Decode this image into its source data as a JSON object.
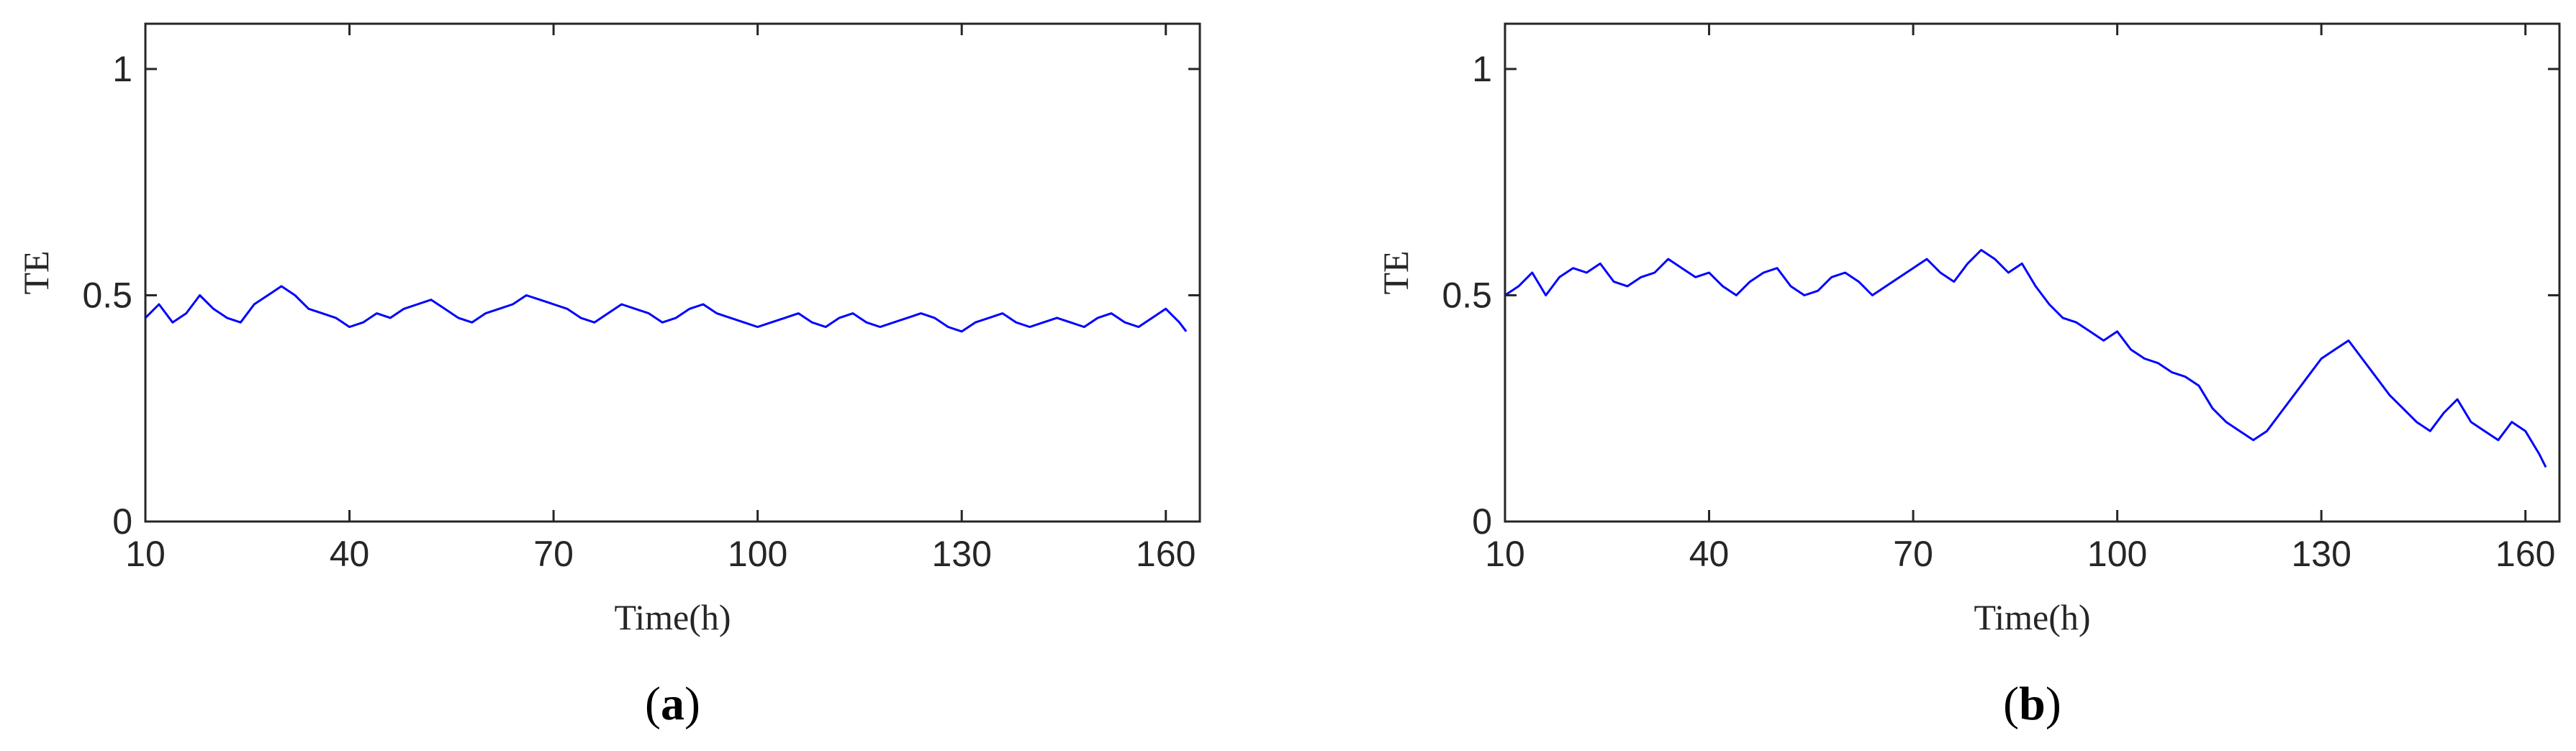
{
  "chart_data": [
    {
      "panel": "(a)",
      "panel_letter": "a",
      "type": "line",
      "xlabel": "Time(h)",
      "ylabel": "TE",
      "xlim": [
        10,
        165
      ],
      "ylim": [
        0,
        1.1
      ],
      "xticks": [
        10,
        40,
        70,
        100,
        130,
        160
      ],
      "yticks": [
        0,
        0.5,
        1
      ],
      "grid": false,
      "series": [
        {
          "color": "#0000ff",
          "x": [
            10,
            12,
            14,
            16,
            18,
            20,
            22,
            24,
            26,
            28,
            30,
            32,
            34,
            36,
            38,
            40,
            42,
            44,
            46,
            48,
            50,
            52,
            54,
            56,
            58,
            60,
            62,
            64,
            66,
            68,
            70,
            72,
            74,
            76,
            78,
            80,
            82,
            84,
            86,
            88,
            90,
            92,
            94,
            96,
            98,
            100,
            102,
            104,
            106,
            108,
            110,
            112,
            114,
            116,
            118,
            120,
            122,
            124,
            126,
            128,
            130,
            132,
            134,
            136,
            138,
            140,
            142,
            144,
            146,
            148,
            150,
            152,
            154,
            156,
            158,
            160,
            162,
            163
          ],
          "values": [
            0.45,
            0.48,
            0.44,
            0.46,
            0.5,
            0.47,
            0.45,
            0.44,
            0.48,
            0.5,
            0.52,
            0.5,
            0.47,
            0.46,
            0.45,
            0.43,
            0.44,
            0.46,
            0.45,
            0.47,
            0.48,
            0.49,
            0.47,
            0.45,
            0.44,
            0.46,
            0.47,
            0.48,
            0.5,
            0.49,
            0.48,
            0.47,
            0.45,
            0.44,
            0.46,
            0.48,
            0.47,
            0.46,
            0.44,
            0.45,
            0.47,
            0.48,
            0.46,
            0.45,
            0.44,
            0.43,
            0.44,
            0.45,
            0.46,
            0.44,
            0.43,
            0.45,
            0.46,
            0.44,
            0.43,
            0.44,
            0.45,
            0.46,
            0.45,
            0.43,
            0.42,
            0.44,
            0.45,
            0.46,
            0.44,
            0.43,
            0.44,
            0.45,
            0.44,
            0.43,
            0.45,
            0.46,
            0.44,
            0.43,
            0.45,
            0.47,
            0.44,
            0.42
          ]
        }
      ]
    },
    {
      "panel": "(b)",
      "panel_letter": "b",
      "type": "line",
      "xlabel": "Time(h)",
      "ylabel": "TE",
      "xlim": [
        10,
        165
      ],
      "ylim": [
        0,
        1.1
      ],
      "xticks": [
        10,
        40,
        70,
        100,
        130,
        160
      ],
      "yticks": [
        0,
        0.5,
        1
      ],
      "grid": false,
      "series": [
        {
          "color": "#0000ff",
          "x": [
            10,
            12,
            14,
            16,
            18,
            20,
            22,
            24,
            26,
            28,
            30,
            32,
            34,
            36,
            38,
            40,
            42,
            44,
            46,
            48,
            50,
            52,
            54,
            56,
            58,
            60,
            62,
            64,
            66,
            68,
            70,
            72,
            74,
            76,
            78,
            80,
            82,
            84,
            86,
            88,
            90,
            92,
            94,
            96,
            98,
            100,
            102,
            104,
            106,
            108,
            110,
            112,
            114,
            116,
            118,
            120,
            122,
            124,
            126,
            128,
            130,
            132,
            134,
            136,
            138,
            140,
            142,
            144,
            146,
            148,
            150,
            152,
            154,
            156,
            158,
            160,
            162,
            163
          ],
          "values": [
            0.5,
            0.52,
            0.55,
            0.5,
            0.54,
            0.56,
            0.55,
            0.57,
            0.53,
            0.52,
            0.54,
            0.55,
            0.58,
            0.56,
            0.54,
            0.55,
            0.52,
            0.5,
            0.53,
            0.55,
            0.56,
            0.52,
            0.5,
            0.51,
            0.54,
            0.55,
            0.53,
            0.5,
            0.52,
            0.54,
            0.56,
            0.58,
            0.55,
            0.53,
            0.57,
            0.6,
            0.58,
            0.55,
            0.57,
            0.52,
            0.48,
            0.45,
            0.44,
            0.42,
            0.4,
            0.42,
            0.38,
            0.36,
            0.35,
            0.33,
            0.32,
            0.3,
            0.25,
            0.22,
            0.2,
            0.18,
            0.2,
            0.24,
            0.28,
            0.32,
            0.36,
            0.38,
            0.4,
            0.36,
            0.32,
            0.28,
            0.25,
            0.22,
            0.2,
            0.24,
            0.27,
            0.22,
            0.2,
            0.18,
            0.22,
            0.2,
            0.15,
            0.12
          ]
        }
      ]
    }
  ]
}
